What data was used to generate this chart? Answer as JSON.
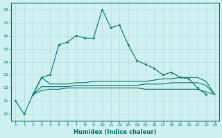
{
  "xlabel": "Humidex (Indice chaleur)",
  "x": [
    0,
    1,
    2,
    3,
    4,
    5,
    6,
    7,
    8,
    9,
    10,
    11,
    12,
    13,
    14,
    15,
    16,
    17,
    18,
    19,
    20,
    21,
    22,
    23
  ],
  "line1": [
    11.0,
    10.0,
    11.5,
    12.8,
    13.0,
    15.3,
    15.5,
    16.0,
    15.8,
    15.8,
    18.0,
    16.6,
    16.8,
    15.3,
    14.1,
    13.8,
    13.5,
    13.0,
    13.2,
    12.8,
    12.7,
    12.0,
    11.5,
    null
  ],
  "line2": [
    null,
    null,
    11.5,
    12.8,
    12.3,
    12.3,
    12.3,
    12.4,
    12.4,
    12.5,
    12.5,
    12.5,
    12.5,
    12.5,
    12.5,
    12.5,
    12.6,
    12.7,
    12.7,
    12.8,
    12.8,
    12.8,
    12.5,
    11.5
  ],
  "line3": [
    null,
    null,
    11.5,
    12.1,
    12.1,
    12.1,
    12.1,
    12.2,
    12.2,
    12.2,
    12.2,
    12.2,
    12.2,
    12.2,
    12.2,
    12.3,
    12.3,
    12.3,
    12.4,
    12.4,
    12.4,
    12.4,
    12.2,
    11.5
  ],
  "line4": [
    null,
    null,
    11.5,
    11.8,
    11.9,
    11.9,
    12.0,
    12.0,
    12.0,
    12.0,
    12.0,
    12.0,
    12.0,
    12.0,
    12.0,
    11.9,
    11.9,
    11.9,
    11.9,
    11.9,
    11.9,
    11.9,
    11.7,
    11.5
  ],
  "line_color": "#007070",
  "bg_color": "#d0f0f0",
  "grid_color": "#b0d8d8",
  "ylim": [
    9.5,
    18.5
  ],
  "xlim": [
    -0.5,
    23.5
  ],
  "yticks": [
    10,
    11,
    12,
    13,
    14,
    15,
    16,
    17,
    18
  ],
  "xticks": [
    0,
    1,
    2,
    3,
    4,
    5,
    6,
    7,
    8,
    9,
    10,
    11,
    12,
    13,
    14,
    15,
    16,
    17,
    18,
    19,
    20,
    21,
    22,
    23
  ]
}
